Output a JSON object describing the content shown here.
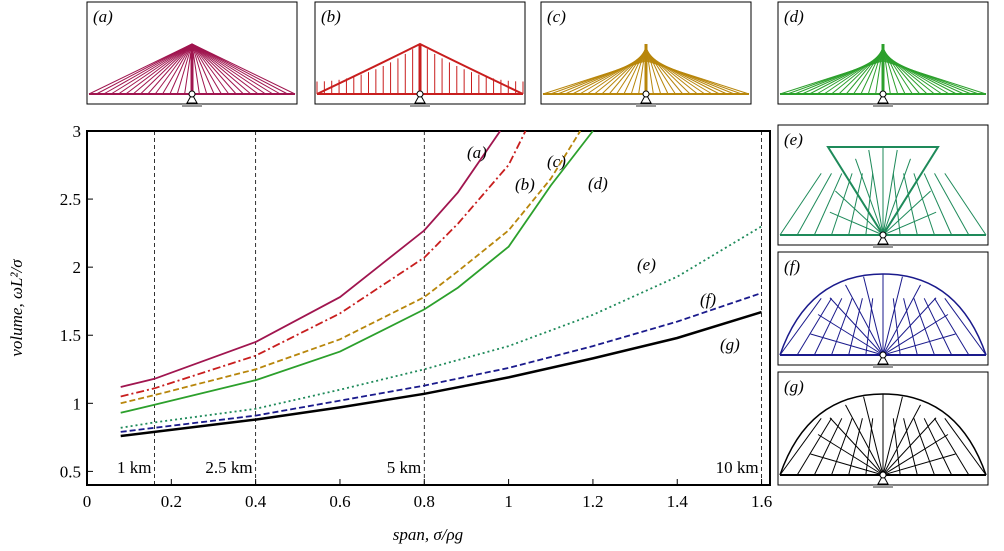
{
  "chart_data": {
    "type": "line",
    "xlabel": "span, σ/ρg",
    "ylabel": "volume, ωL²/σ",
    "xlim": [
      0,
      1.62
    ],
    "ylim": [
      0.4,
      3.0
    ],
    "xticks": [
      0,
      0.2,
      0.4,
      0.6,
      0.8,
      1.0,
      1.2,
      1.4,
      1.6
    ],
    "yticks": [
      0.5,
      1.0,
      1.5,
      2.0,
      2.5,
      3.0
    ],
    "annotations": [
      {
        "x": 0.16,
        "label": "1 km"
      },
      {
        "x": 0.4,
        "label": "2.5 km"
      },
      {
        "x": 0.8,
        "label": "5 km"
      },
      {
        "x": 1.6,
        "label": "10 km"
      }
    ],
    "series": [
      {
        "name": "(a)",
        "color": "#a0154f",
        "dash": "solid",
        "x": [
          0.08,
          0.16,
          0.4,
          0.6,
          0.8,
          0.88,
          0.98
        ],
        "values": [
          1.12,
          1.18,
          1.45,
          1.78,
          2.27,
          2.55,
          3.0
        ]
      },
      {
        "name": "(b)",
        "color": "#c81e1e",
        "dash": "dashdot",
        "x": [
          0.08,
          0.16,
          0.4,
          0.6,
          0.8,
          0.88,
          1.0,
          1.04
        ],
        "values": [
          1.05,
          1.11,
          1.35,
          1.66,
          2.07,
          2.32,
          2.75,
          3.0
        ]
      },
      {
        "name": "(c)",
        "color": "#b8860b",
        "dash": "dashed",
        "x": [
          0.08,
          0.16,
          0.4,
          0.6,
          0.8,
          0.88,
          1.0,
          1.1,
          1.17
        ],
        "values": [
          1.0,
          1.06,
          1.25,
          1.47,
          1.78,
          1.97,
          2.27,
          2.65,
          3.0
        ]
      },
      {
        "name": "(d)",
        "color": "#2ca02c",
        "dash": "solid",
        "x": [
          0.08,
          0.16,
          0.4,
          0.6,
          0.8,
          0.88,
          1.0,
          1.1,
          1.2
        ],
        "values": [
          0.93,
          0.99,
          1.17,
          1.38,
          1.69,
          1.85,
          2.15,
          2.6,
          3.0
        ]
      },
      {
        "name": "(e)",
        "color": "#1e8a5a",
        "dash": "dotted",
        "x": [
          0.08,
          0.16,
          0.4,
          0.6,
          0.8,
          1.0,
          1.2,
          1.4,
          1.6
        ],
        "values": [
          0.82,
          0.86,
          0.96,
          1.1,
          1.25,
          1.42,
          1.65,
          1.93,
          2.3
        ]
      },
      {
        "name": "(f)",
        "color": "#1a1a8c",
        "dash": "dashed",
        "x": [
          0.08,
          0.16,
          0.4,
          0.6,
          0.8,
          1.0,
          1.2,
          1.4,
          1.6
        ],
        "values": [
          0.79,
          0.82,
          0.91,
          1.02,
          1.13,
          1.26,
          1.42,
          1.6,
          1.81
        ]
      },
      {
        "name": "(g)",
        "color": "#000000",
        "dash": "solid",
        "x": [
          0.08,
          0.16,
          0.4,
          0.6,
          0.8,
          1.0,
          1.2,
          1.4,
          1.6
        ],
        "values": [
          0.76,
          0.79,
          0.88,
          0.97,
          1.07,
          1.19,
          1.33,
          1.48,
          1.67
        ]
      }
    ]
  }
}
